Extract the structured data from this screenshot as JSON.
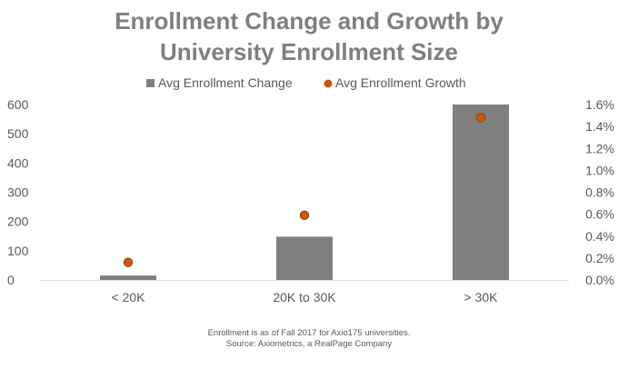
{
  "chart_data": {
    "type": "bar",
    "title_lines": [
      "Enrollment Change and Growth by",
      "University Enrollment Size"
    ],
    "categories": [
      "< 20K",
      "20K to 30K",
      "> 30K"
    ],
    "series": [
      {
        "name": "Avg Enrollment Change",
        "kind": "bar",
        "axis": "left",
        "values": [
          15,
          148,
          600
        ],
        "color": "#7f7f7f"
      },
      {
        "name": "Avg Enrollment Growth",
        "kind": "point",
        "axis": "right",
        "values": [
          0.0016,
          0.0059,
          0.0148
        ],
        "color": "#c55a11"
      }
    ],
    "y_left": {
      "ylim": [
        0,
        600
      ],
      "ticks": [
        0,
        100,
        200,
        300,
        400,
        500,
        600
      ],
      "tick_labels": [
        "0",
        "100",
        "200",
        "300",
        "400",
        "500",
        "600"
      ]
    },
    "y_right": {
      "ylim": [
        0,
        0.016
      ],
      "ticks": [
        0,
        0.002,
        0.004,
        0.006,
        0.008,
        0.01,
        0.012,
        0.014,
        0.016
      ],
      "tick_labels": [
        "0.0%",
        "0.2%",
        "0.4%",
        "0.6%",
        "0.8%",
        "1.0%",
        "1.2%",
        "1.4%",
        "1.6%"
      ]
    },
    "grid": false,
    "legend_position": "top",
    "notes": [
      "Enrollment is as of Fall 2017 for Axio175 universities.",
      "Source: Axiometrics, a RealPage Company"
    ]
  }
}
